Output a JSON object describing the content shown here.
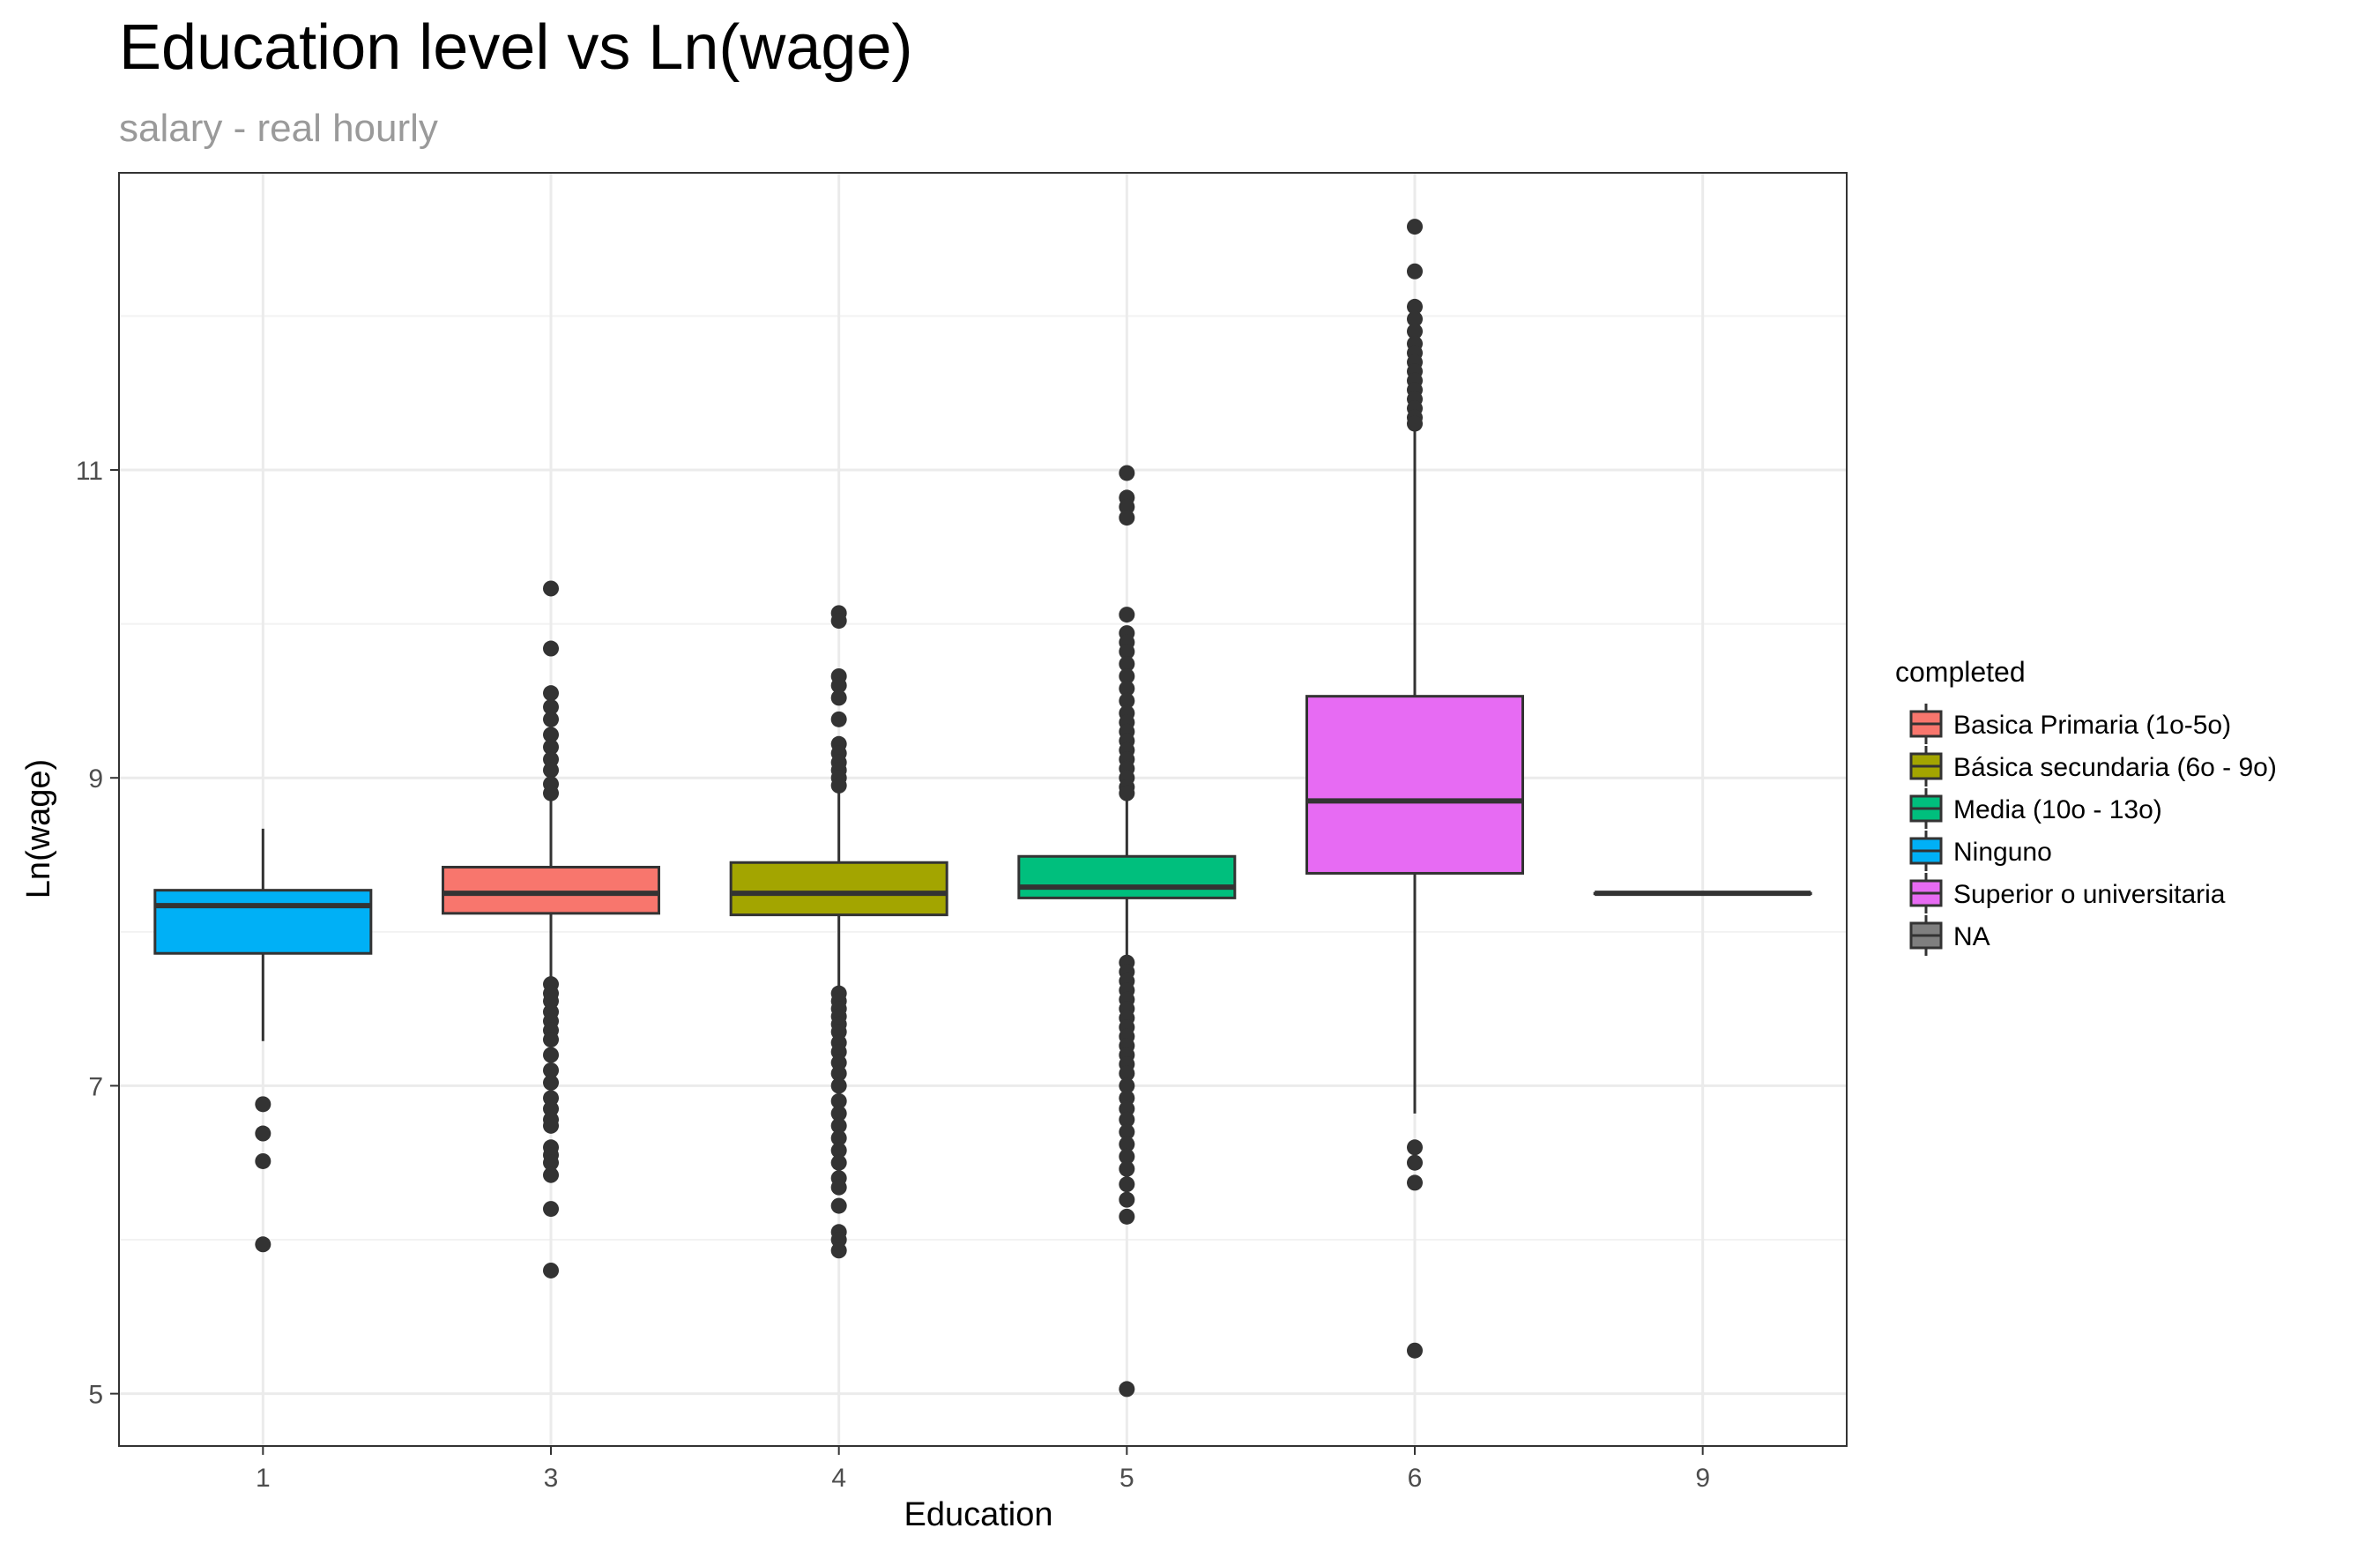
{
  "chart_data": {
    "type": "boxplot",
    "title": "Education level vs Ln(wage)",
    "subtitle": "salary - real hourly",
    "xlabel": "Education",
    "ylabel": "Ln(wage)",
    "ylim": [
      4.66,
      12.93
    ],
    "yticks": [
      5,
      7,
      9,
      11
    ],
    "ytick_labels": [
      "5",
      "7",
      "9",
      "11"
    ],
    "categories": [
      "1",
      "3",
      "4",
      "5",
      "6",
      "9"
    ],
    "grid": true,
    "legend": {
      "title": "completed",
      "position": "right",
      "entries": [
        {
          "label": "Basica Primaria (1o-5o)",
          "color": "#F8766D"
        },
        {
          "label": "Básica secundaria (6o - 9o)",
          "color": "#A3A500"
        },
        {
          "label": "Media (10o - 13o)",
          "color": "#00BF7D"
        },
        {
          "label": "Ninguno",
          "color": "#00B0F6"
        },
        {
          "label": "Superior o universitaria",
          "color": "#E76BF3"
        },
        {
          "label": "NA",
          "color": "#7F7F7F"
        }
      ]
    },
    "boxes": [
      {
        "category": "1",
        "group": "Ninguno",
        "color": "#00B0F6",
        "q1": 7.86,
        "median": 8.17,
        "q3": 8.27,
        "whisker_low": 7.29,
        "whisker_high": 8.67,
        "outliers": [
          6.88,
          6.69,
          6.51,
          5.97
        ]
      },
      {
        "category": "3",
        "group": "Basica Primaria (1o-5o)",
        "color": "#F8766D",
        "q1": 8.12,
        "median": 8.25,
        "q3": 8.42,
        "whisker_low": 7.68,
        "whisker_high": 8.85,
        "outliers": [
          10.23,
          9.84,
          9.55,
          9.46,
          9.38,
          9.28,
          9.2,
          9.12,
          9.05,
          8.96,
          8.9,
          7.66,
          7.6,
          7.55,
          7.48,
          7.42,
          7.36,
          7.3,
          7.2,
          7.1,
          7.02,
          6.92,
          6.85,
          6.78,
          6.74,
          6.6,
          6.55,
          6.5,
          6.42,
          6.2,
          5.8
        ]
      },
      {
        "category": "4",
        "group": "Básica secundaria (6o - 9o)",
        "color": "#A3A500",
        "q1": 8.11,
        "median": 8.25,
        "q3": 8.45,
        "whisker_low": 7.62,
        "whisker_high": 8.92,
        "outliers": [
          10.07,
          10.02,
          9.66,
          9.6,
          9.52,
          9.38,
          9.22,
          9.16,
          9.1,
          9.05,
          9.0,
          8.95,
          7.6,
          7.55,
          7.5,
          7.45,
          7.4,
          7.35,
          7.28,
          7.22,
          7.15,
          7.08,
          7.0,
          6.9,
          6.82,
          6.74,
          6.66,
          6.58,
          6.5,
          6.4,
          6.34,
          6.22,
          6.05,
          6.0,
          5.93
        ]
      },
      {
        "category": "5",
        "group": "Media (10o - 13o)",
        "color": "#00BF7D",
        "q1": 8.22,
        "median": 8.29,
        "q3": 8.49,
        "whisker_low": 7.82,
        "whisker_high": 8.88,
        "outliers": [
          10.98,
          10.82,
          10.76,
          10.69,
          10.06,
          9.94,
          9.88,
          9.82,
          9.74,
          9.66,
          9.58,
          9.5,
          9.42,
          9.36,
          9.3,
          9.24,
          9.18,
          9.12,
          9.06,
          9.0,
          8.94,
          8.9,
          7.8,
          7.74,
          7.68,
          7.62,
          7.56,
          7.5,
          7.44,
          7.38,
          7.32,
          7.26,
          7.2,
          7.14,
          7.08,
          7.0,
          6.92,
          6.85,
          6.78,
          6.7,
          6.62,
          6.54,
          6.46,
          6.36,
          6.26,
          6.15,
          5.03
        ]
      },
      {
        "category": "6",
        "group": "Superior o universitaria",
        "color": "#E76BF3",
        "q1": 8.38,
        "median": 8.85,
        "q3": 9.53,
        "whisker_low": 6.82,
        "whisker_high": 11.26,
        "outliers": [
          12.58,
          12.29,
          12.06,
          11.98,
          11.9,
          11.82,
          11.76,
          11.7,
          11.64,
          11.58,
          11.52,
          11.46,
          11.4,
          11.34,
          11.3,
          6.6,
          6.5,
          6.37,
          5.28
        ]
      },
      {
        "category": "9",
        "group": "NA",
        "color": "#7F7F7F",
        "q1": 8.25,
        "median": 8.25,
        "q3": 8.25,
        "whisker_low": 8.25,
        "whisker_high": 8.25,
        "outliers": []
      }
    ]
  }
}
